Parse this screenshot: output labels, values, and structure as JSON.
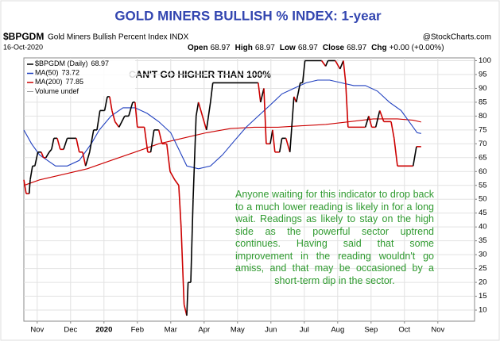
{
  "chart_data": {
    "type": "line",
    "title": "GOLD MINERS BULLISH % INDEX: 1-year",
    "symbol": "$BPGDM",
    "description": "Gold Miners Bullish Percent Index INDX",
    "source": "@StockCharts.com",
    "date": "16-Oct-2020",
    "quote": [
      {
        "label": "Open",
        "value": 68.97
      },
      {
        "label": "High",
        "value": 68.97
      },
      {
        "label": "Low",
        "value": 68.97
      },
      {
        "label": "Close",
        "value": 68.97
      },
      {
        "label": "Chg",
        "value": "+0.00 (+0.00%)"
      }
    ],
    "volume_label": "Volume undef",
    "annotations": [
      "CAN'T GO HIGHER THAN 100%",
      "Anyone waiting for this indicator to drop back to a much lower reading is likely in for a long wait. Readings as likely to stay on the high side as the powerful sector uptrend continues. Having said that some improvement in the reading wouldn't go amiss, and that may be occasioned by a short-term dip in the sector."
    ],
    "xlim": [
      0.6,
      14.1
    ],
    "xticks": [
      {
        "value": 1,
        "label": "Nov"
      },
      {
        "value": 2,
        "label": "Dec"
      },
      {
        "value": 3,
        "label": "2020"
      },
      {
        "value": 4,
        "label": "Feb"
      },
      {
        "value": 5,
        "label": "Mar"
      },
      {
        "value": 6,
        "label": "Apr"
      },
      {
        "value": 7,
        "label": "May"
      },
      {
        "value": 8,
        "label": "Jun"
      },
      {
        "value": 9,
        "label": "Jul"
      },
      {
        "value": 10,
        "label": "Aug"
      },
      {
        "value": 11,
        "label": "Sep"
      },
      {
        "value": 12,
        "label": "Oct"
      },
      {
        "value": 13,
        "label": "Nov"
      }
    ],
    "ylim": [
      6,
      101
    ],
    "yticks": [
      10,
      15,
      20,
      25,
      30,
      35,
      40,
      45,
      50,
      55,
      60,
      65,
      70,
      75,
      80,
      85,
      90,
      95,
      100
    ],
    "grid": true,
    "series": [
      {
        "name": "$BPGDM (Daily)",
        "color": "#000000",
        "down_color": "#cc0000",
        "x": [
          0.6,
          0.67,
          0.76,
          0.79,
          0.86,
          0.93,
          1.02,
          1.12,
          1.19,
          1.26,
          1.36,
          1.43,
          1.5,
          1.6,
          1.69,
          1.79,
          1.9,
          2.17,
          2.26,
          2.36,
          2.45,
          2.57,
          2.69,
          2.79,
          2.88,
          3.02,
          3.1,
          3.17,
          3.24,
          3.33,
          3.45,
          3.62,
          3.74,
          3.86,
          3.93,
          4.0,
          4.21,
          4.31,
          4.4,
          4.5,
          4.64,
          4.74,
          4.88,
          4.98,
          5.12,
          5.24,
          5.31,
          5.4,
          5.48,
          5.52,
          5.6,
          5.67,
          5.76,
          5.83,
          5.95,
          6.07,
          6.19,
          6.26,
          7.62,
          7.69,
          7.79,
          7.86,
          7.98,
          8.05,
          8.12,
          8.26,
          8.33,
          8.45,
          8.57,
          8.69,
          8.76,
          8.88,
          8.95,
          9.02,
          9.52,
          9.64,
          9.71,
          9.93,
          10.07,
          10.17,
          10.24,
          10.31,
          10.83,
          10.93,
          11.02,
          11.14,
          11.26,
          11.38,
          11.6,
          11.69,
          11.79,
          12.26,
          12.36,
          12.5
        ],
        "values": [
          57,
          52,
          52,
          57,
          62,
          62,
          67,
          67,
          65,
          65,
          67,
          68,
          72,
          72,
          68,
          68,
          72,
          72,
          67,
          67,
          62,
          67,
          75,
          75,
          82,
          82,
          87,
          87,
          82,
          78,
          76,
          80,
          80,
          85,
          85,
          76,
          76,
          67,
          67,
          75,
          75,
          70,
          70,
          60,
          57,
          55,
          40,
          12,
          8,
          20,
          20,
          50,
          80,
          85,
          80,
          75,
          85,
          92,
          92,
          85,
          90,
          70,
          70,
          75,
          67,
          67,
          72,
          72,
          67,
          87,
          85,
          92,
          92,
          100,
          100,
          98,
          100,
          100,
          97,
          100,
          92,
          76,
          76,
          80,
          76,
          76,
          82,
          78,
          78,
          72,
          62,
          62,
          69,
          68.97
        ]
      },
      {
        "name": "MA(50)",
        "color": "#1f3fbf",
        "x": [
          0.6,
          0.83,
          1.07,
          1.31,
          1.55,
          1.9,
          2.26,
          2.62,
          2.86,
          3.21,
          3.57,
          3.93,
          4.29,
          4.64,
          5.0,
          5.24,
          5.48,
          5.83,
          6.19,
          6.55,
          6.9,
          7.26,
          7.62,
          7.98,
          8.33,
          8.69,
          9.05,
          9.4,
          9.76,
          10.12,
          10.48,
          10.83,
          11.19,
          11.55,
          11.9,
          12.14,
          12.38,
          12.5
        ],
        "values": [
          75,
          70,
          66,
          64,
          62,
          62,
          64,
          70,
          75,
          80,
          83,
          83,
          81,
          78,
          74,
          68,
          62,
          61,
          62,
          66,
          71,
          76,
          80,
          84,
          88,
          90,
          92,
          93,
          93,
          92,
          91,
          91,
          89,
          85,
          82,
          78,
          74,
          73.72
        ]
      },
      {
        "name": "MA(200)",
        "color": "#cc0000",
        "x": [
          0.6,
          1.07,
          1.79,
          2.5,
          3.21,
          3.93,
          4.64,
          5.36,
          6.07,
          6.79,
          7.5,
          8.21,
          8.93,
          9.64,
          10.36,
          11.07,
          11.79,
          12.26,
          12.5
        ],
        "values": [
          55,
          57,
          59,
          61,
          64,
          67,
          70,
          72,
          74,
          75.5,
          76,
          76,
          76.5,
          77,
          78,
          79,
          79,
          78.5,
          77.85
        ]
      }
    ]
  }
}
